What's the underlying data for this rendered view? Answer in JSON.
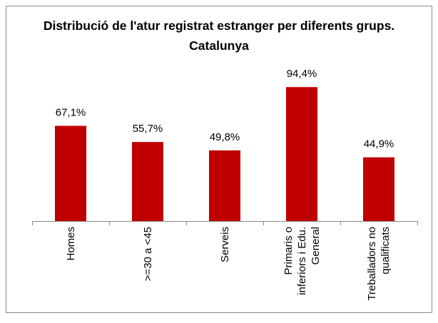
{
  "chart_data": {
    "type": "bar",
    "title": "Distribució de l'atur registrat estranger per diferents grups. Catalunya",
    "categories": [
      "Homes",
      ">=30 a <45",
      "Serveis",
      "Primaris o inferiors i Edu. General",
      "Treballadors no qualificats"
    ],
    "values": [
      67.1,
      55.7,
      49.8,
      94.4,
      44.9
    ],
    "value_labels": [
      "67,1%",
      "55,7%",
      "49,8%",
      "94,4%",
      "44,9%"
    ],
    "color": "#c00000",
    "ylim": [
      0,
      100
    ]
  }
}
